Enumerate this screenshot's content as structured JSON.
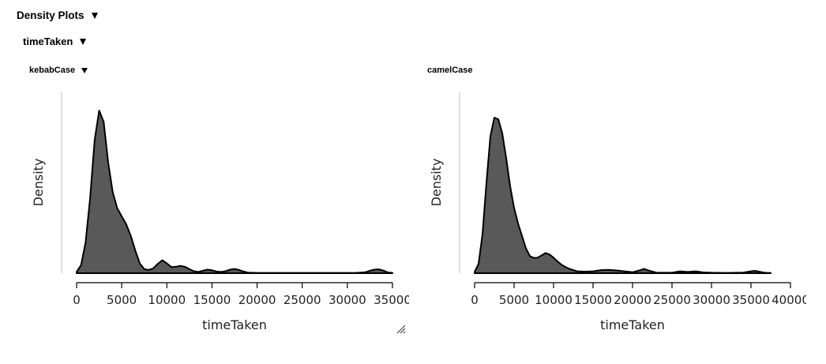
{
  "headers": {
    "section": "Density Plots",
    "variable": "timeTaken",
    "group": "kebabCase"
  },
  "chart_data": [
    {
      "type": "area",
      "title": "kebabCase",
      "xlabel": "timeTaken",
      "ylabel": "Density",
      "xlim": [
        0,
        35000
      ],
      "xticks": [
        0,
        5000,
        10000,
        15000,
        20000,
        25000,
        30000,
        35000
      ],
      "tick_labels": [
        "0",
        "5000",
        "10000",
        "15000",
        "20000",
        "25000",
        "30000",
        "35000"
      ],
      "series": [
        {
          "x": [
            0,
            500,
            1000,
            1500,
            2000,
            2500,
            3000,
            3500,
            4000,
            4500,
            5000,
            5500,
            6000,
            6500,
            7000,
            7500,
            8000,
            8500,
            9000,
            9500,
            10000,
            10500,
            11000,
            11500,
            12000,
            12500,
            13000,
            13500,
            14000,
            14500,
            15000,
            15500,
            16000,
            16500,
            17000,
            17500,
            18000,
            18500,
            19000,
            20000,
            22000,
            25000,
            28000,
            31000,
            32000,
            32500,
            33000,
            33500,
            34000,
            34500,
            35000
          ],
          "y": [
            0.008,
            0.05,
            0.19,
            0.46,
            0.82,
            1.0,
            0.93,
            0.68,
            0.5,
            0.4,
            0.35,
            0.3,
            0.23,
            0.14,
            0.06,
            0.025,
            0.02,
            0.03,
            0.058,
            0.08,
            0.06,
            0.038,
            0.04,
            0.045,
            0.04,
            0.025,
            0.012,
            0.008,
            0.015,
            0.022,
            0.018,
            0.01,
            0.008,
            0.012,
            0.022,
            0.026,
            0.02,
            0.01,
            0.004,
            0.002,
            0.002,
            0.002,
            0.002,
            0.002,
            0.006,
            0.015,
            0.022,
            0.024,
            0.016,
            0.005,
            0.002
          ]
        }
      ]
    },
    {
      "type": "area",
      "title": "camelCase",
      "xlabel": "timeTaken",
      "ylabel": "Density",
      "xlim": [
        0,
        40000
      ],
      "xticks": [
        0,
        5000,
        10000,
        15000,
        20000,
        25000,
        30000,
        35000,
        40000
      ],
      "tick_labels": [
        "0",
        "5000",
        "10000",
        "15000",
        "20000",
        "25000",
        "30000",
        "35000",
        "40000"
      ],
      "series": [
        {
          "x": [
            0,
            500,
            1000,
            1500,
            2000,
            2500,
            3000,
            3500,
            4000,
            4500,
            5000,
            5500,
            6000,
            6500,
            7000,
            7500,
            8000,
            8500,
            9000,
            9500,
            10000,
            10500,
            11000,
            11500,
            12000,
            12500,
            13000,
            14000,
            15000,
            16000,
            17000,
            18000,
            19000,
            20000,
            21000,
            21500,
            22000,
            23000,
            24000,
            25000,
            26000,
            27000,
            28000,
            29000,
            30000,
            32000,
            34000,
            35000,
            35500,
            36000,
            36500,
            37000,
            37500
          ],
          "y": [
            0.008,
            0.06,
            0.25,
            0.58,
            0.88,
            1.0,
            0.99,
            0.9,
            0.74,
            0.56,
            0.42,
            0.32,
            0.24,
            0.16,
            0.11,
            0.098,
            0.1,
            0.115,
            0.13,
            0.12,
            0.1,
            0.075,
            0.055,
            0.04,
            0.028,
            0.02,
            0.012,
            0.01,
            0.012,
            0.02,
            0.022,
            0.018,
            0.012,
            0.006,
            0.02,
            0.028,
            0.018,
            0.004,
            0.003,
            0.003,
            0.012,
            0.008,
            0.012,
            0.005,
            0.003,
            0.002,
            0.004,
            0.012,
            0.015,
            0.01,
            0.005,
            0.002,
            0.002
          ]
        }
      ]
    }
  ]
}
